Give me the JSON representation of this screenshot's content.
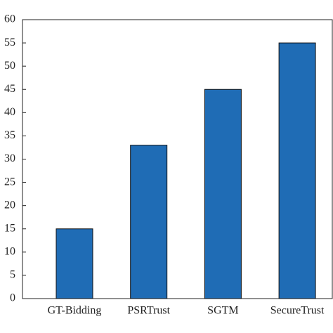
{
  "chart_data": {
    "type": "bar",
    "categories": [
      "GT-Bidding",
      "PSRTrust",
      "SGTM",
      "SecureTrust"
    ],
    "values": [
      15,
      33,
      45,
      55
    ],
    "color": "#1f6cb5",
    "ylim": [
      0,
      60
    ],
    "yticks": [
      0,
      5,
      10,
      15,
      20,
      25,
      30,
      35,
      40,
      45,
      50,
      55,
      60
    ],
    "grid": false
  }
}
